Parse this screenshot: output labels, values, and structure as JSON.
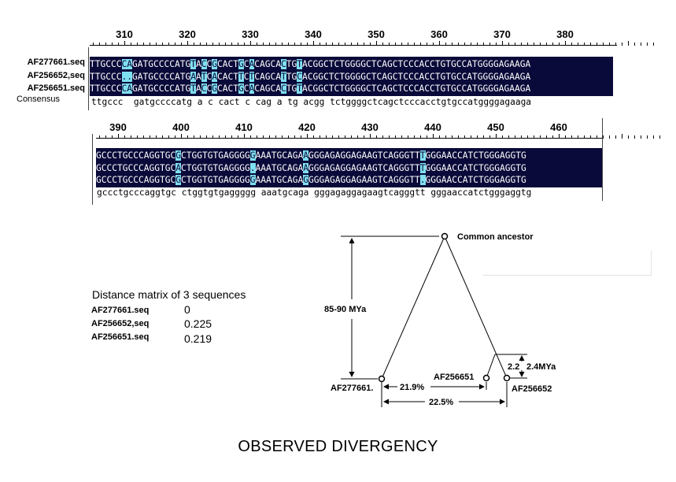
{
  "alignment": {
    "block1": {
      "ruler_labels": [
        "310",
        "320",
        "330",
        "340",
        "350",
        "360",
        "370",
        "380"
      ],
      "sequences": [
        {
          "name": "AF277661.seq",
          "seq": "TTGCCCCAGATGCCCCATGTACCGCACTGCACAGCACTGTACGGCTCTGGGGCTCAGCTCCCACCTGTGCCATGGGGAGAAGA"
        },
        {
          "name": "AF256652,seq",
          "seq": "TTGCCC..GATGCCCCATGAATCACACTTCTCAGCATTGCACGGCTCTGGGGCTCAGCTCCCACCTGTGCCATGGGGAGAAGA"
        },
        {
          "name": "AF256651.seq",
          "seq": "TTGCCCCAGATGCCCCATGTACCGCACTGCACAGCACTGTACGGCTCTGGGGCTCAGCTCCCACCTGTGCCATGGGGAGAAGA"
        }
      ],
      "consensus_name": "Consensus",
      "consensus": "ttgccc  gatgccccatg a c cact c cag a tg acgg tctggggctcagctcccacctgtgccatggggagaaga"
    },
    "block2": {
      "ruler_labels": [
        "390",
        "400",
        "410",
        "420",
        "430",
        "440",
        "450",
        "460"
      ],
      "sequences": [
        {
          "seq": "GCCCTGCCCAGGTGCGCTGGTGTGAGGGGGAAATGCAGAAGGGAGAGGAGAAGTCAGGGTTTGGGAACCATCTGGGAGGTG"
        },
        {
          "seq": "GCCCTGCCCAGGTGCACTGGTGTGAGGGG.AAATGCAGAAGGGAGAGGAGAAGTCAGGGTTTGGGAACCATCTGGGAGGTG"
        },
        {
          "seq": "GCCCTGCCCAGGTGCGCTGGTGTGAGGGGGAAATGCAGAGGGGAGAGGAGAAGTCAGGGTT.GGGAACCATCTGGGAGGTG"
        }
      ],
      "consensus": "gccctgcccaggtgc ctggtgtgaggggg aaatgcaga gggagaggagaagtcagggtt gggaaccatctgggaggtg"
    },
    "colors": {
      "background": "#0a0a3a",
      "highlight": "#7fe0f0",
      "text": "#ffffff"
    }
  },
  "distance_matrix": {
    "title": "Distance matrix of 3 sequences",
    "rows": [
      {
        "name": "AF277661.seq",
        "value": "0"
      },
      {
        "name": "AF256652,seq",
        "value": "0.225"
      },
      {
        "name": "AF256651.seq",
        "value": "0.219"
      }
    ]
  },
  "tree": {
    "ancestor_label": "Common ancestor",
    "time_label": "85-90 MYa",
    "small_time_label": "2.2",
    "small_time_label2": "2.4MYa",
    "leaf1": "AF277661.",
    "leaf2": "AF256651",
    "leaf3": "AF256652",
    "div1": "21.9%",
    "div2": "22.5%"
  },
  "footer": "OBSERVED DIVERGENCY"
}
